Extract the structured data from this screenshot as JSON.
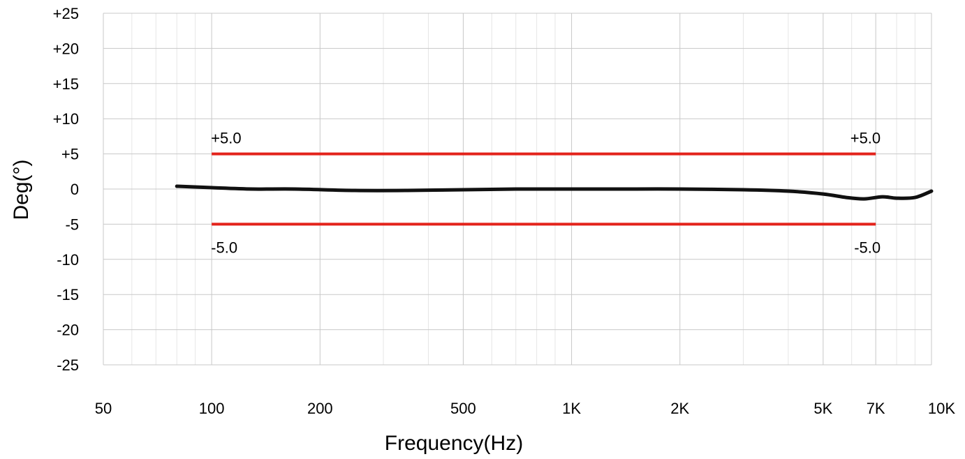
{
  "chart_data": {
    "type": "line",
    "title": "",
    "xlabel": "Frequency(Hz)",
    "ylabel": "Deg(°)",
    "x_scale": "log",
    "xlim": [
      50,
      10000
    ],
    "ylim": [
      -25,
      25
    ],
    "grid": true,
    "x_ticks": [
      {
        "value": 50,
        "label": "50"
      },
      {
        "value": 100,
        "label": "100"
      },
      {
        "value": 200,
        "label": "200"
      },
      {
        "value": 500,
        "label": "500"
      },
      {
        "value": 1000,
        "label": "1K"
      },
      {
        "value": 2000,
        "label": "2K"
      },
      {
        "value": 5000,
        "label": "5K"
      },
      {
        "value": 7000,
        "label": "7K"
      },
      {
        "value": 10000,
        "label": "10K"
      }
    ],
    "y_ticks": [
      {
        "value": 25,
        "label": "+25"
      },
      {
        "value": 20,
        "label": "+20"
      },
      {
        "value": 15,
        "label": "+15"
      },
      {
        "value": 10,
        "label": "+10"
      },
      {
        "value": 5,
        "label": "+5"
      },
      {
        "value": 0,
        "label": "0"
      },
      {
        "value": -5,
        "label": "-5"
      },
      {
        "value": -10,
        "label": "-10"
      },
      {
        "value": -15,
        "label": "-15"
      },
      {
        "value": -20,
        "label": "-20"
      },
      {
        "value": -25,
        "label": "-25"
      }
    ],
    "series": [
      {
        "color": "#111111",
        "x": [
          80,
          100,
          130,
          170,
          250,
          350,
          500,
          700,
          1000,
          1500,
          2000,
          3000,
          4000,
          5000,
          5800,
          6500,
          7300,
          8000,
          9000,
          10000
        ],
        "y": [
          0.4,
          0.2,
          0.0,
          0.0,
          -0.2,
          -0.2,
          -0.1,
          0.0,
          0.0,
          0.0,
          0.0,
          -0.1,
          -0.3,
          -0.7,
          -1.2,
          -1.4,
          -1.1,
          -1.3,
          -1.2,
          -0.3
        ]
      }
    ],
    "limits": [
      {
        "value": 5,
        "x": [
          100,
          7000
        ],
        "color": "#e3231b",
        "label_left": "+5.0",
        "label_right": "+5.0"
      },
      {
        "value": -5,
        "x": [
          100,
          7000
        ],
        "color": "#e3231b",
        "label_left": "-5.0",
        "label_right": "-5.0"
      }
    ]
  }
}
